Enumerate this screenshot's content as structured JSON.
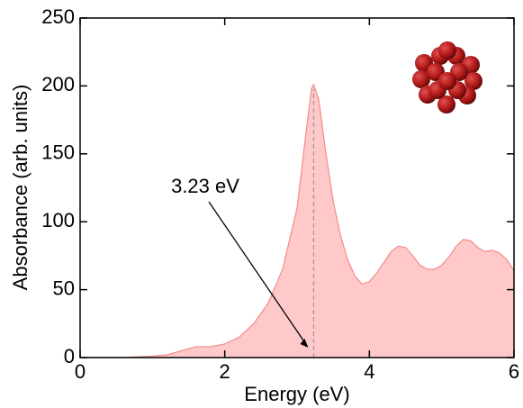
{
  "chart_data": {
    "type": "area",
    "xlabel": "Energy (eV)",
    "ylabel": "Absorbance (arb. units)",
    "x": [
      0,
      0.5,
      0.8,
      1.0,
      1.2,
      1.4,
      1.6,
      1.8,
      2.0,
      2.2,
      2.4,
      2.6,
      2.8,
      3.0,
      3.1,
      3.2,
      3.23,
      3.3,
      3.4,
      3.5,
      3.6,
      3.7,
      3.8,
      3.9,
      4.0,
      4.1,
      4.2,
      4.3,
      4.4,
      4.5,
      4.6,
      4.7,
      4.8,
      4.9,
      5.0,
      5.1,
      5.2,
      5.3,
      5.4,
      5.5,
      5.6,
      5.7,
      5.8,
      5.9,
      6.0
    ],
    "values": [
      0,
      0,
      0.5,
      1,
      2,
      5,
      8,
      8,
      10,
      15,
      25,
      40,
      65,
      110,
      155,
      198,
      201,
      190,
      150,
      115,
      90,
      72,
      60,
      54,
      56,
      62,
      70,
      78,
      82,
      81,
      75,
      68,
      65,
      65,
      68,
      74,
      82,
      87,
      86,
      81,
      78,
      79,
      77,
      72,
      64
    ],
    "color": "#ffc9c9",
    "line_color": "#f28b8b",
    "xlim": [
      0,
      6
    ],
    "xticks": [
      0,
      2,
      4,
      6
    ],
    "ylim": [
      0,
      250
    ],
    "yticks": [
      0,
      50,
      100,
      150,
      200,
      250
    ],
    "annotations": [
      {
        "label": "3.23 eV",
        "x": 3.23
      }
    ]
  }
}
